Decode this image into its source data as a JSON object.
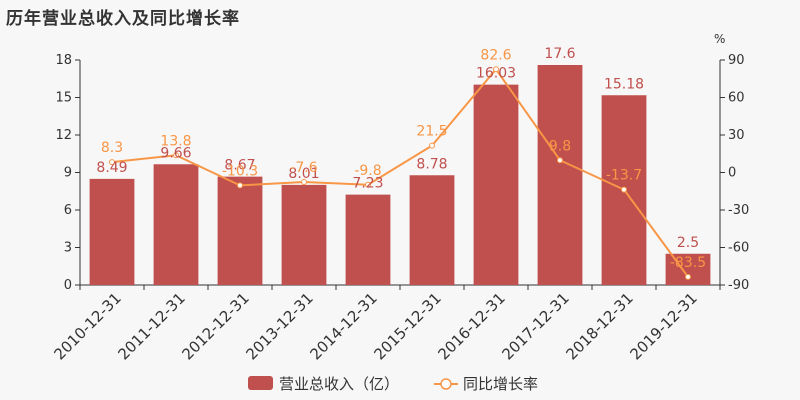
{
  "title": "历年营业总收入及同比增长率",
  "colors": {
    "bar": "#c0504d",
    "line": "#f79646",
    "axis": "#333333",
    "grid": "#e6e6e6"
  },
  "chart_data": {
    "type": "bar",
    "categories": [
      "2010-12-31",
      "2011-12-31",
      "2012-12-31",
      "2013-12-31",
      "2014-12-31",
      "2015-12-31",
      "2016-12-31",
      "2017-12-31",
      "2018-12-31",
      "2019-12-31"
    ],
    "series": [
      {
        "name": "营业总收入（亿）",
        "type": "bar",
        "axis": "left",
        "values": [
          8.49,
          9.66,
          8.67,
          8.01,
          7.23,
          8.78,
          16.03,
          17.6,
          15.18,
          2.5
        ],
        "labels": [
          "8.49",
          "9.66",
          "8.67",
          "8.01",
          "7.23",
          "8.78",
          "16.03",
          "17.6",
          "15.18",
          "2.5"
        ]
      },
      {
        "name": "同比增长率",
        "type": "line",
        "axis": "right",
        "values": [
          8.3,
          13.8,
          -10.3,
          -7.6,
          -9.8,
          21.5,
          82.6,
          9.8,
          -13.7,
          -83.5
        ],
        "labels": [
          "8.3",
          "13.8",
          "-10.3",
          "-7.6",
          "-9.8",
          "21.5",
          "82.6",
          "9.8",
          "-13.7",
          "-83.5"
        ]
      }
    ],
    "y_left": {
      "min": 0,
      "max": 18,
      "ticks": [
        "0",
        "3",
        "6",
        "9",
        "12",
        "15",
        "18"
      ]
    },
    "y_right": {
      "min": -90,
      "max": 90,
      "unit": "%",
      "ticks": [
        "-90",
        "-60",
        "-30",
        "0",
        "30",
        "60",
        "90"
      ]
    },
    "legend": {
      "position": "bottom"
    },
    "grid": false
  }
}
